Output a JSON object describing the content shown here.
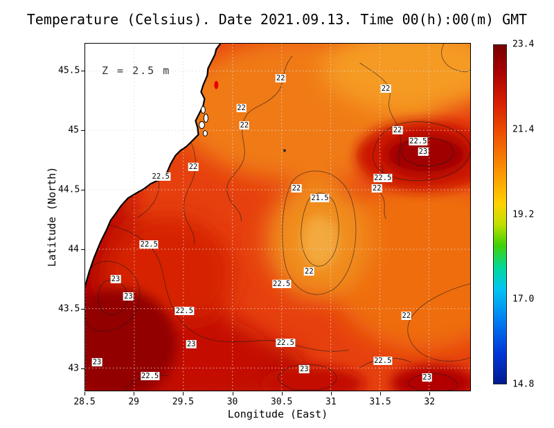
{
  "chart_data": {
    "type": "heatmap",
    "title": "Temperature (Celsius). Date 2021.09.13. Time 00(h):00(m) GMT",
    "depth_annotation": "Z = 2.5 m",
    "xlabel": "Longitude (East)",
    "ylabel": "Latitude (North)",
    "units": "Celsius",
    "x_range": [
      28.5,
      32.42
    ],
    "y_range": [
      42.81,
      45.73
    ],
    "x_ticks": [
      "28.5",
      "29",
      "29.5",
      "30",
      "30.5",
      "31",
      "31.5",
      "32"
    ],
    "y_ticks": [
      "43",
      "43.5",
      "44",
      "44.5",
      "45",
      "45.5"
    ],
    "grid": "dotted",
    "grid_color": "#e3d8cf",
    "legend_position": "right-colorbar",
    "colorbar": {
      "min": 14.8,
      "max": 23.4,
      "tick_labels": [
        "23.4",
        "21.4",
        "19.2",
        "17.0",
        "14.8"
      ],
      "gradient": [
        "#780000 0%",
        "#a30000 7%",
        "#d81e00 17%",
        "#ef5500 27%",
        "#fa9200 37%",
        "#ffd200 47%",
        "#bfe000 53%",
        "#44d100 59%",
        "#00d8a0 66%",
        "#00c6f2 72%",
        "#0080f2 81%",
        "#0036d8 91%",
        "#001a90 100%"
      ]
    },
    "contour_levels": [
      21.5,
      22,
      22.5,
      23
    ],
    "contour_labels": [
      {
        "level": "22",
        "lon": 30.49,
        "lat": 45.44
      },
      {
        "level": "22",
        "lon": 30.09,
        "lat": 45.19
      },
      {
        "level": "22",
        "lon": 30.12,
        "lat": 45.04
      },
      {
        "level": "22",
        "lon": 31.56,
        "lat": 45.35
      },
      {
        "level": "22",
        "lon": 31.68,
        "lat": 45.0
      },
      {
        "level": "22.5",
        "lon": 31.89,
        "lat": 44.91
      },
      {
        "level": "23",
        "lon": 31.94,
        "lat": 44.82
      },
      {
        "level": "22",
        "lon": 29.6,
        "lat": 44.69
      },
      {
        "level": "22.5",
        "lon": 29.27,
        "lat": 44.61
      },
      {
        "level": "22.5",
        "lon": 31.53,
        "lat": 44.6
      },
      {
        "level": "22",
        "lon": 31.47,
        "lat": 44.51
      },
      {
        "level": "22",
        "lon": 30.65,
        "lat": 44.51
      },
      {
        "level": "21.5",
        "lon": 30.89,
        "lat": 44.43
      },
      {
        "level": "22.5",
        "lon": 29.15,
        "lat": 44.04
      },
      {
        "level": "22",
        "lon": 30.78,
        "lat": 43.81
      },
      {
        "level": "23",
        "lon": 28.81,
        "lat": 43.75
      },
      {
        "level": "22.5",
        "lon": 30.5,
        "lat": 43.71
      },
      {
        "level": "23",
        "lon": 28.94,
        "lat": 43.6
      },
      {
        "level": "22.5",
        "lon": 29.51,
        "lat": 43.48
      },
      {
        "level": "22",
        "lon": 31.77,
        "lat": 43.44
      },
      {
        "level": "22.5",
        "lon": 30.54,
        "lat": 43.21
      },
      {
        "level": "23",
        "lon": 29.58,
        "lat": 43.2
      },
      {
        "level": "23",
        "lon": 28.62,
        "lat": 43.05
      },
      {
        "level": "22.5",
        "lon": 31.53,
        "lat": 43.06
      },
      {
        "level": "23",
        "lon": 30.73,
        "lat": 42.99
      },
      {
        "level": "22.5",
        "lon": 29.16,
        "lat": 42.93
      },
      {
        "level": "23",
        "lon": 31.98,
        "lat": 42.92
      }
    ],
    "field_summary": "Sea surface temperature of the western Black Sea, mostly 21.5-23.4 C; warmest water (>=23 C) along the southwest coast and in a warm eddy near 31.9E 44.85N; cooler ~21.5 C patch near 30.9E 44.4N; white land with Danube delta coastline in the northwest.",
    "land_color": "#ffffff",
    "coast_color": "#000000"
  }
}
